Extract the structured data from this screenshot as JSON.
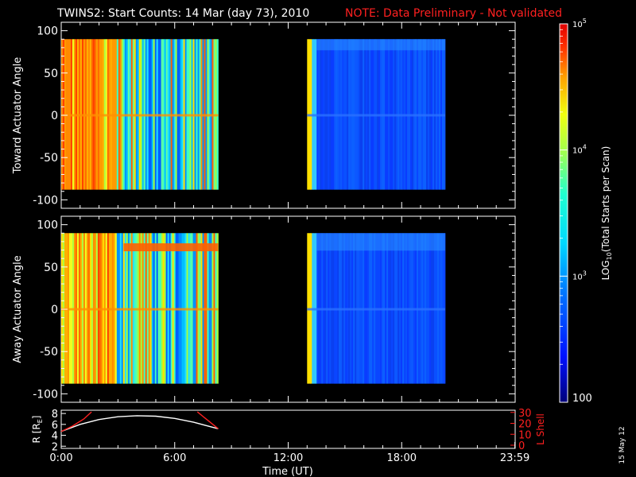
{
  "title": {
    "main": "TWINS2: Start Counts: 14 Mar (day  73), 2010",
    "note": "NOTE: Data Preliminary - Not validated"
  },
  "footer_date": "15 May 12",
  "chart_data": [
    {
      "type": "heatmap",
      "name": "toward",
      "ylabel": "Toward Actuator Angle",
      "ylim": [
        -110,
        110
      ],
      "yticks": [
        "100",
        "50",
        "0",
        "-50",
        "-100"
      ],
      "ytick_values": [
        100,
        50,
        0,
        -50,
        -100
      ],
      "xlim_hours": [
        0,
        24
      ],
      "data_coverage_hours": [
        [
          0.0,
          8.3
        ],
        [
          13.0,
          20.3
        ]
      ],
      "angle_range": [
        -88,
        90
      ]
    },
    {
      "type": "heatmap",
      "name": "away",
      "ylabel": "Away Actuator Angle",
      "ylim": [
        -110,
        110
      ],
      "yticks": [
        "100",
        "50",
        "0",
        "-50",
        "-100"
      ],
      "ytick_values": [
        100,
        50,
        0,
        -50,
        -100
      ],
      "xlim_hours": [
        0,
        24
      ],
      "data_coverage_hours": [
        [
          0.0,
          8.3
        ],
        [
          13.0,
          20.3
        ]
      ],
      "angle_range": [
        -88,
        90
      ]
    },
    {
      "type": "line",
      "name": "orbit",
      "ylabel_left_main": "R [R",
      "ylabel_left_sub": "E",
      "ylabel_left_end": "]",
      "ylabel_right": "L Shell",
      "left_yticks": [
        "8",
        "6",
        "4",
        "2"
      ],
      "left_ytick_values": [
        8,
        6,
        4,
        2
      ],
      "right_yticks": [
        "30",
        "20",
        "10",
        "0"
      ],
      "right_ytick_values": [
        30,
        20,
        10,
        0
      ],
      "xticks": [
        "0:00",
        "6:00",
        "12:00",
        "18:00",
        "23:59"
      ],
      "xtick_values": [
        0,
        6,
        12,
        18,
        23.983
      ],
      "xlabel": "Time (UT)",
      "series": [
        {
          "color": "#ffffff",
          "x": [
            0.0,
            1.0,
            2.0,
            3.0,
            4.0,
            5.0,
            6.0,
            7.0,
            8.3
          ],
          "y": [
            4.7,
            6.0,
            6.9,
            7.4,
            7.6,
            7.5,
            7.1,
            6.4,
            5.2
          ]
        },
        {
          "color": "#ff2020",
          "x": [
            0.0,
            0.6,
            1.2,
            1.6
          ],
          "y": [
            4.7,
            5.7,
            7.0,
            8.3
          ]
        },
        {
          "color": "#ff2020",
          "x": [
            7.2,
            7.8,
            8.3
          ],
          "y": [
            8.3,
            6.6,
            5.2
          ]
        }
      ]
    }
  ],
  "colorbar": {
    "min": 100,
    "max": 100000,
    "scale": "log",
    "label_pre": "LOG",
    "label_sub": "10",
    "label_post": "(Total Starts per Scan)",
    "bottom_label": "100",
    "tick_labels": [
      {
        "base": "10",
        "exp": "3",
        "value": 1000
      },
      {
        "base": "10",
        "exp": "4",
        "value": 10000
      },
      {
        "base": "10",
        "exp": "5",
        "value": 100000
      }
    ],
    "colors": [
      "#000080",
      "#0000ff",
      "#0080ff",
      "#00e0ff",
      "#40ffc0",
      "#c0ff40",
      "#ffe000",
      "#ff8000",
      "#ff2000",
      "#e00000"
    ]
  }
}
